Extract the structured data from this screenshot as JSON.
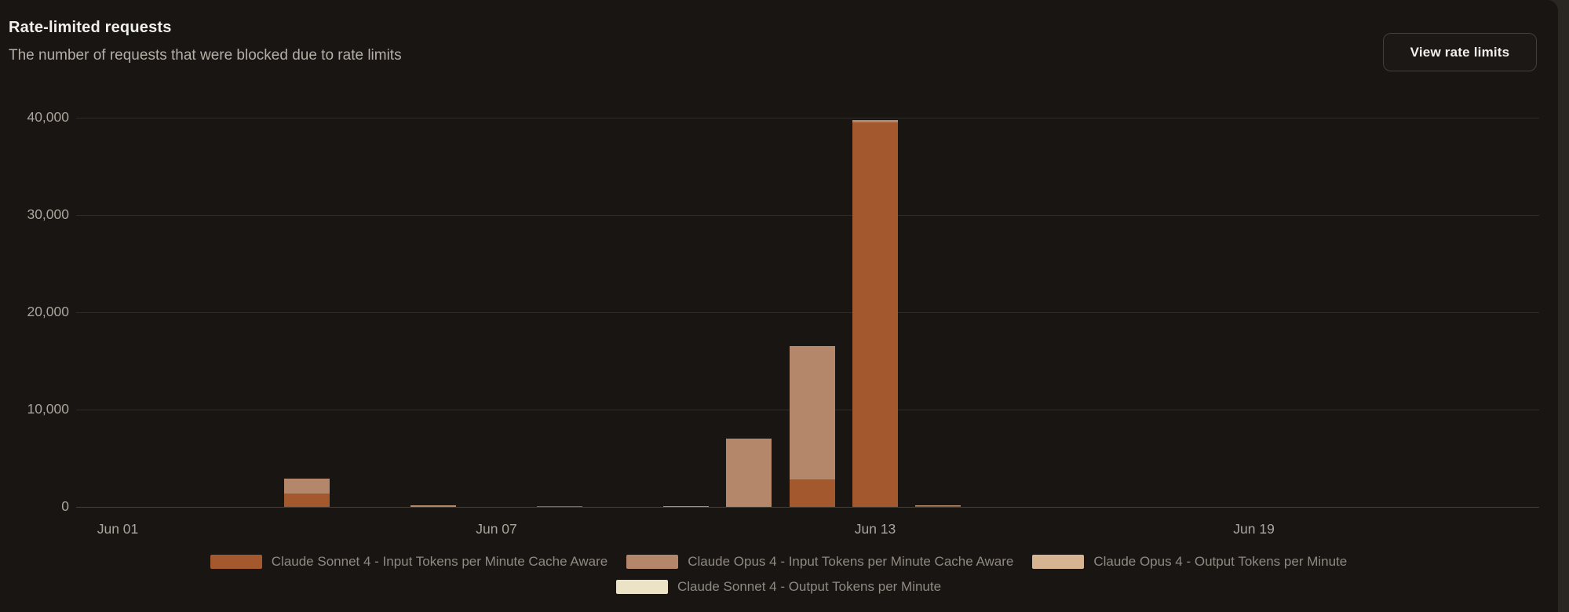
{
  "header": {
    "title": "Rate-limited requests",
    "subtitle": "The number of requests that were blocked due to rate limits",
    "button_label": "View rate limits"
  },
  "colors": {
    "card_background": "#181512",
    "page_background": "#2a2622",
    "gridline": "#2f2c28",
    "axis_text": "#a9a59d",
    "legend_text": "#8e8a82",
    "title_text": "#f2f0ec",
    "subtitle_text": "#b3afa7"
  },
  "chart_data": {
    "type": "bar",
    "stacked": true,
    "title": "Rate-limited requests",
    "xlabel": "",
    "ylabel": "",
    "grid": "horizontal",
    "legend_position": "bottom-center",
    "x_tick_labels": [
      "Jun 01",
      "Jun 07",
      "Jun 13",
      "Jun 19"
    ],
    "x_tick_day_indices": [
      0,
      6,
      12,
      18
    ],
    "y_ticks": [
      0,
      10000,
      20000,
      30000,
      40000
    ],
    "y_tick_labels": [
      "0",
      "10,000",
      "20,000",
      "30,000",
      "40,000"
    ],
    "ylim": [
      0,
      43000
    ],
    "series": [
      {
        "name": "Claude Sonnet 4 - Input Tokens per Minute Cache Aware",
        "color": "#a4582e"
      },
      {
        "name": "Claude Opus 4 - Input Tokens per Minute Cache Aware",
        "color": "#b4876a"
      },
      {
        "name": "Claude Opus 4 - Output Tokens per Minute",
        "color": "#d7b491"
      },
      {
        "name": "Claude Sonnet 4 - Output Tokens per Minute",
        "color": "#ece2c6"
      }
    ],
    "bars": [
      {
        "date": "Jun 04",
        "day_index": 3,
        "values": [
          1400,
          1500,
          0,
          0
        ]
      },
      {
        "date": "Jun 06",
        "day_index": 5,
        "values": [
          0,
          160,
          0,
          0
        ]
      },
      {
        "date": "Jun 08",
        "day_index": 7,
        "values": [
          90,
          0,
          0,
          0
        ]
      },
      {
        "date": "Jun 10",
        "day_index": 9,
        "values": [
          0,
          110,
          0,
          0
        ]
      },
      {
        "date": "Jun 11",
        "day_index": 10,
        "values": [
          0,
          7000,
          0,
          0
        ]
      },
      {
        "date": "Jun 12",
        "day_index": 11,
        "values": [
          2800,
          13700,
          0,
          0
        ]
      },
      {
        "date": "Jun 13",
        "day_index": 12,
        "values": [
          39500,
          250,
          0,
          0
        ]
      },
      {
        "date": "Jun 14",
        "day_index": 13,
        "values": [
          90,
          60,
          0,
          0
        ]
      }
    ]
  }
}
